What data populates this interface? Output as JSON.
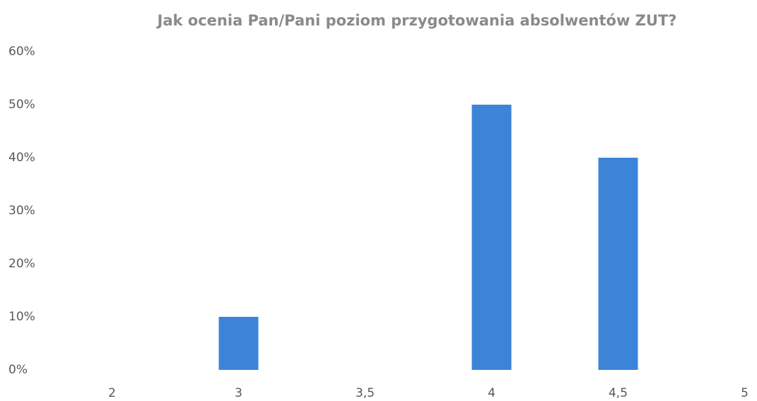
{
  "chart_data": {
    "type": "bar",
    "title": "Jak ocenia Pan/Pani poziom przygotowania absolwentów ZUT?",
    "categories": [
      "2",
      "3",
      "3,5",
      "4",
      "4,5",
      "5"
    ],
    "values": [
      0,
      10,
      0,
      50,
      40,
      0
    ],
    "color": "#3c84d8",
    "ylim": [
      0,
      60
    ],
    "yticks": [
      {
        "value": 0,
        "label": "0%"
      },
      {
        "value": 10,
        "label": "10%"
      },
      {
        "value": 20,
        "label": "20%"
      },
      {
        "value": 30,
        "label": "30%"
      },
      {
        "value": 40,
        "label": "40%"
      },
      {
        "value": 50,
        "label": "50%"
      },
      {
        "value": 60,
        "label": "60%"
      }
    ],
    "grid": false
  }
}
